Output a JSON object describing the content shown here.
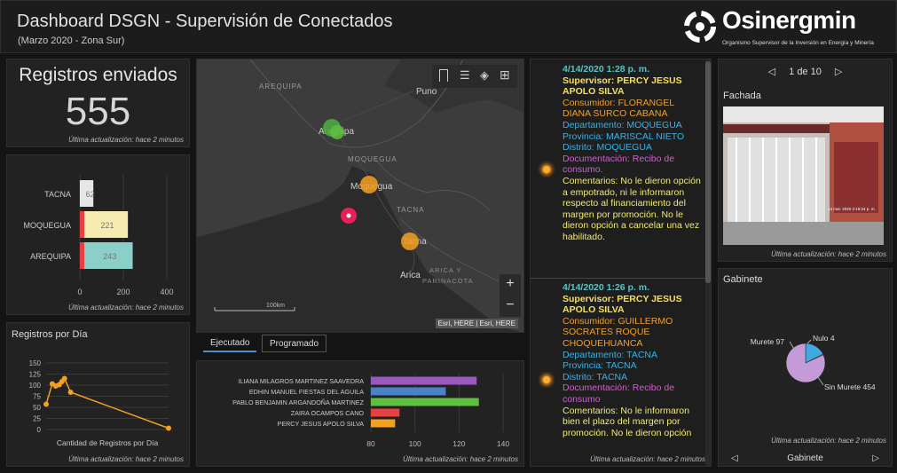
{
  "header": {
    "title": "Dashboard DSGN - Supervisión de Conectados",
    "subtitle": "(Marzo 2020 - Zona Sur)",
    "logo_name": "Osinergmin",
    "logo_tagline": "Organismo Supervisor de la Inversión en Energía y Minería"
  },
  "registros": {
    "title": "Registros enviados",
    "value": "555",
    "footer": "Última actualización: hace 2 minutos"
  },
  "dept_chart": {
    "footer": "Última actualización: hace 2 minutos"
  },
  "daily_chart": {
    "title": "Registros por Día",
    "footer": "Última actualización: hace 2 minutos"
  },
  "map": {
    "labels": {
      "arequipa_region": "AREQUIPA",
      "puno": "Puno",
      "arequipa_city": "Arequipa",
      "moquegua_region": "MOQUEGUA",
      "moquegua_city": "Moquegua",
      "tacna_region": "TACNA",
      "tacna_city": "Tacna",
      "arica": "Arica",
      "arica_region": "ARICA Y",
      "parinacota": "PARINACOTA"
    },
    "scale": "100km",
    "attribution": "Esri, HERE | Esri, HERE",
    "zoom_in": "+",
    "zoom_out": "−"
  },
  "tabs": {
    "tab1": "Ejecutado",
    "tab2": "Programado"
  },
  "sup_chart": {
    "footer": "Última actualización: hace 2 minutos"
  },
  "feed": {
    "footer": "Última actualización: hace 2 minutos",
    "entries": [
      {
        "date": "4/14/2020 1:28 p. m.",
        "sup": "Supervisor:  PERCY JESUS APOLO SILVA",
        "cons": "Consumidor: FLORANGEL DIANA SURCO CABANA",
        "dept": "Departamento: MOQUEGUA",
        "prov": "Provincia: MARISCAL NIETO",
        "dist": "Distrito: MOQUEGUA",
        "doc": "Documentación: Recibo de consumo.",
        "com": "Comentarios: No le dieron opción a empotrado, ni le informaron respecto al financiamiento del margen por promoción. No le dieron opción a cancelar una vez habilitado."
      },
      {
        "date": "4/14/2020 1:26 p. m.",
        "sup": "Supervisor:  PERCY JESUS APOLO SILVA",
        "cons": "Consumidor: GUILLERMO SOCRATES ROQUE CHOQUEHUANCA",
        "dept": "Departamento: TACNA",
        "prov": "Provincia: TACNA",
        "dist": "Distrito: TACNA",
        "doc": "Documentación: Recibo de consumo",
        "com": "Comentarios: No le informaron bien el plazo del margen por promoción. No le dieron opción"
      }
    ]
  },
  "fachada": {
    "pager": "1 de 10",
    "title": "Fachada",
    "footer": "Última actualización: hace 2 minutos",
    "photo_stamp": "14 mar. 2020 2:19:24 p. m."
  },
  "gabinete": {
    "title": "Gabinete",
    "pie_labels": [
      "Murete 97",
      "Nulo 4",
      "Sin Murete 454"
    ],
    "footer": "Última actualización: hace 2 minutos",
    "nav_label": "Gabinete"
  },
  "chart_data": [
    {
      "type": "bar",
      "orientation": "horizontal",
      "categories": [
        "TACNA",
        "MOQUEGUA",
        "AREQUIPA"
      ],
      "values": [
        62,
        221,
        243
      ],
      "colors": [
        "#e6e6e6",
        "#f6ecb0",
        "#8ad0c8"
      ],
      "xlim": [
        0,
        400
      ],
      "xticks": [
        0,
        200,
        400
      ]
    },
    {
      "type": "line",
      "xlabel": "Cantidad de Registros por Día",
      "y": [
        57,
        103,
        98,
        101,
        108,
        115,
        84,
        3
      ],
      "x": [
        0,
        0.35,
        0.55,
        0.75,
        0.9,
        1.05,
        1.4,
        7
      ],
      "ylim": [
        0,
        150
      ],
      "yticks": [
        0,
        25,
        50,
        75,
        100,
        125,
        150
      ]
    },
    {
      "type": "bar",
      "orientation": "horizontal",
      "categories": [
        "ILIANA MILAGROS MARTINEZ SAAVEDRA",
        "EDHIN MANUEL FIESTAS DEL AGUILA",
        "PABLO BENJAMIN ARGANDOÑA MARTINEZ",
        "ZAIRA OCAMPOS CANO",
        "PERCY JESUS APOLO SILVA"
      ],
      "values": [
        128,
        114,
        129,
        93,
        91
      ],
      "colors": [
        "#9b59c0",
        "#4a82c8",
        "#5fbf3f",
        "#e84040",
        "#f2a020"
      ],
      "xlim": [
        80,
        140
      ],
      "xticks": [
        80,
        100,
        120,
        140
      ]
    },
    {
      "type": "pie",
      "categories": [
        "Murete",
        "Nulo",
        "Sin Murete"
      ],
      "values": [
        97,
        4,
        454
      ],
      "colors": [
        "#3fa9e0",
        "#5fbf3f",
        "#c49ad8"
      ]
    }
  ]
}
